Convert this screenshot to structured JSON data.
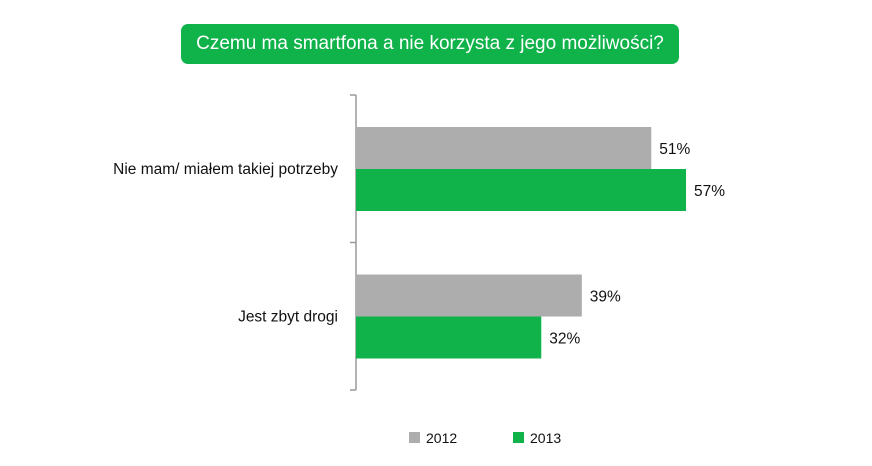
{
  "chart_data": {
    "type": "bar",
    "orientation": "horizontal",
    "title": "Czemu ma smartfona a nie korzysta z jego możliwości?",
    "categories": [
      "Nie mam/ miałem  takiej potrzeby",
      "Jest zbyt drogi"
    ],
    "series": [
      {
        "name": "2012",
        "values": [
          51,
          39
        ],
        "labels": [
          "51%",
          "39%"
        ],
        "color": "#adadad"
      },
      {
        "name": "2013",
        "values": [
          57,
          32
        ],
        "labels": [
          "57%",
          "32%"
        ],
        "color": "#10b24a"
      }
    ],
    "xlabel": "",
    "ylabel": "",
    "xlim": [
      0,
      100
    ],
    "grid": false,
    "legend": "bottom"
  }
}
